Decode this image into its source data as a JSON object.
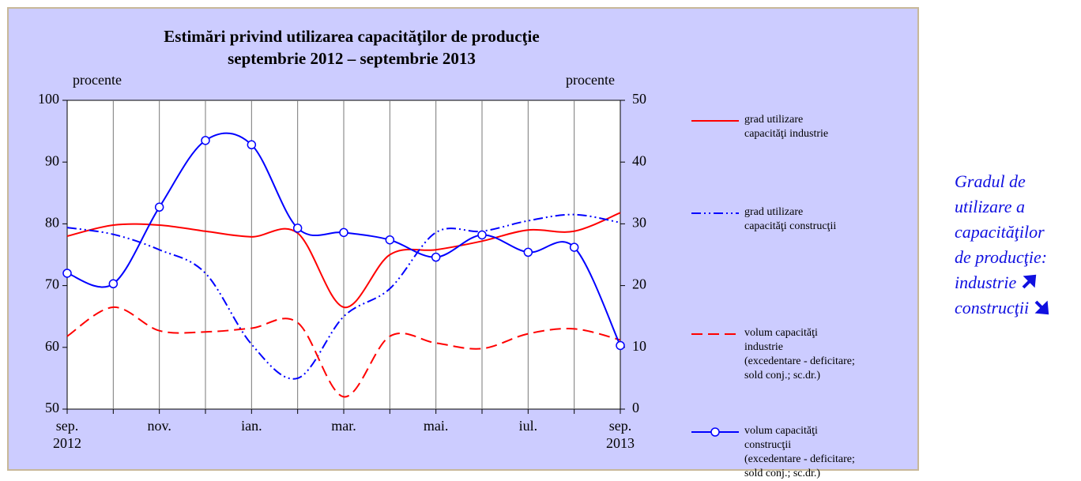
{
  "chart_data": {
    "type": "line",
    "title": "Estimări privind utilizarea capacităţilor de producţie",
    "subtitle": "septembrie 2012 – septembrie 2013",
    "y_label": "procente",
    "y2_label": "procente",
    "categories": [
      "sep.\n2012",
      null,
      "nov.",
      null,
      "ian.",
      null,
      "mar.",
      null,
      "mai.",
      null,
      "iul.",
      null,
      "sep.\n2013"
    ],
    "ylim": [
      50,
      100
    ],
    "yticks": [
      50,
      60,
      70,
      80,
      90,
      100
    ],
    "y2lim": [
      0,
      50
    ],
    "y2ticks": [
      0,
      10,
      20,
      30,
      40,
      50
    ],
    "grid": "vertical",
    "series": [
      {
        "name": "grad utilizare\ncapacităţi industrie",
        "color": "#ff0000",
        "style": "solid",
        "values": [
          78,
          79.8,
          79.8,
          78.8,
          77.9,
          78.5,
          66.5,
          75,
          75.8,
          77.2,
          79,
          78.8,
          81.8
        ]
      },
      {
        "name": "grad utilizare\ncapacităţi construcţii",
        "color": "#0000ff",
        "style": "dashdotdot",
        "values": [
          79.4,
          78.3,
          75.8,
          72,
          60.5,
          55,
          65,
          69.5,
          78.6,
          78.8,
          80.5,
          81.5,
          80.2
        ]
      },
      {
        "name": "volum capacităţi\nindustrie\n(excedentare - deficitare;\nsold conj.; sc.dr.)",
        "color": "#ff0000",
        "style": "dashed",
        "axis": "y2",
        "values": [
          11.8,
          16.5,
          12.7,
          12.5,
          13.1,
          14,
          2,
          11.8,
          10.7,
          9.8,
          12.2,
          13,
          11.2
        ]
      },
      {
        "name": "volum capacităţi\nconstrucţii\n(excedentare - deficitare;\nsold conj.; sc.dr.)",
        "color": "#0000ff",
        "style": "solid",
        "marker": "circle",
        "axis": "y2",
        "values": [
          22,
          20.3,
          32.7,
          43.5,
          42.8,
          29.3,
          28.6,
          27.4,
          24.6,
          28.2,
          25.4,
          26.2,
          10.3
        ]
      }
    ]
  },
  "side_note": {
    "heading": "Gradul de\nutilizare a\ncapacităţilor\nde producţie:",
    "item1": "industrie",
    "item2": "construcţii"
  }
}
